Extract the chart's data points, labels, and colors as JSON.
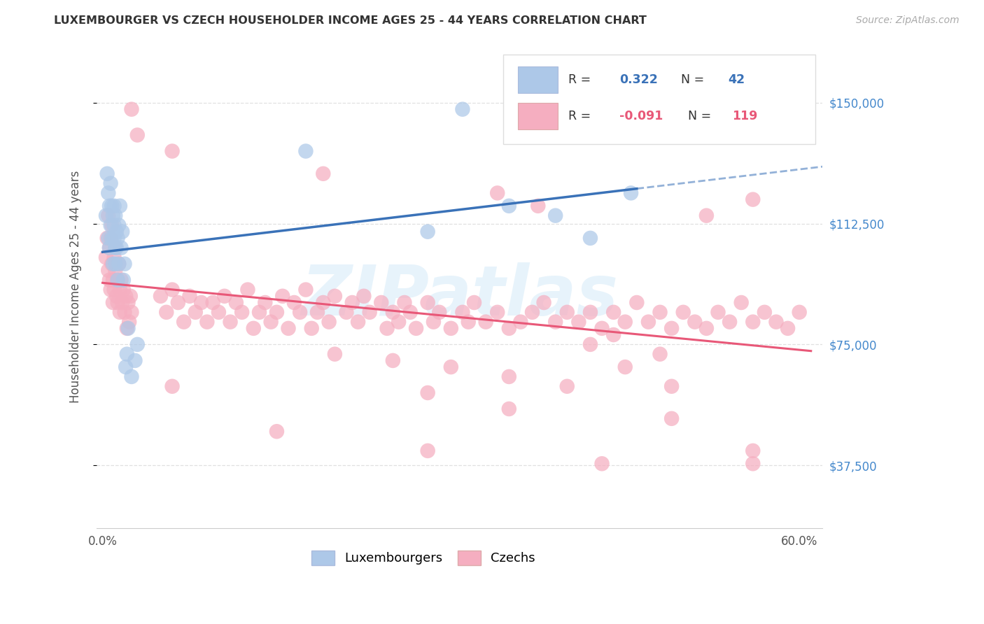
{
  "title": "LUXEMBOURGER VS CZECH HOUSEHOLDER INCOME AGES 25 - 44 YEARS CORRELATION CHART",
  "source": "Source: ZipAtlas.com",
  "ylabel": "Householder Income Ages 25 - 44 years",
  "ytick_values": [
    37500,
    75000,
    112500,
    150000
  ],
  "ytick_labels": [
    "$37,500",
    "$75,000",
    "$112,500",
    "$150,000"
  ],
  "ylim_low": 18000,
  "ylim_high": 168000,
  "xlim_low": -0.005,
  "xlim_high": 0.62,
  "lux_r": "0.322",
  "lux_n": "42",
  "czech_r": "-0.091",
  "czech_n": "119",
  "lux_color": "#adc8e8",
  "czech_color": "#f5aec0",
  "lux_line_color": "#3a72b8",
  "czech_line_color": "#e85878",
  "lux_label": "Luxembourgers",
  "czech_label": "Czechs",
  "bg_color": "#ffffff",
  "watermark": "ZIPatlas",
  "watermark_color": "#d0e8f8",
  "grid_color": "#e0e0e0",
  "title_color": "#333333",
  "source_color": "#aaaaaa",
  "ylabel_color": "#555555",
  "yticklabel_color": "#4488cc",
  "r_color_lux": "#3a72b8",
  "r_color_czech": "#e85878",
  "legend_box_color": "#eeeeee"
}
